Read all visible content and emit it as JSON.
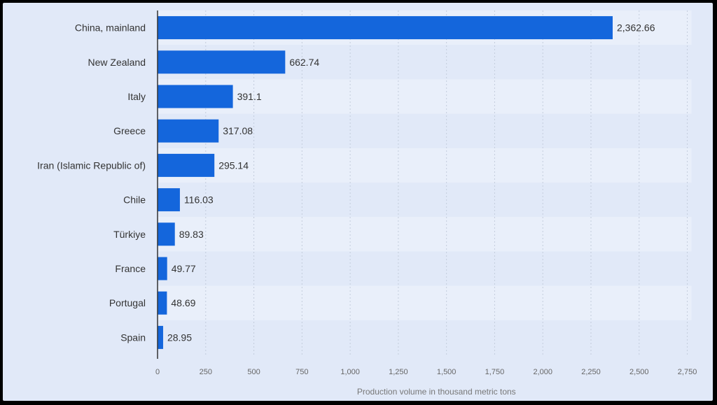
{
  "chart_data": {
    "type": "bar",
    "orientation": "horizontal",
    "categories": [
      "China, mainland",
      "New Zealand",
      "Italy",
      "Greece",
      "Iran (Islamic Republic of)",
      "Chile",
      "Türkiye",
      "France",
      "Portugal",
      "Spain"
    ],
    "values": [
      2362.66,
      662.74,
      391.1,
      317.08,
      295.14,
      116.03,
      89.83,
      49.77,
      48.69,
      28.95
    ],
    "value_labels": [
      "2,362.66",
      "662.74",
      "391.1",
      "317.08",
      "295.14",
      "116.03",
      "89.83",
      "49.77",
      "48.69",
      "28.95"
    ],
    "xlabel": "Production volume in thousand metric tons",
    "ylabel": "",
    "xlim": [
      0,
      2750
    ],
    "x_ticks": [
      0,
      250,
      500,
      750,
      1000,
      1250,
      1500,
      1750,
      2000,
      2250,
      2500,
      2750
    ],
    "x_tick_labels": [
      "0",
      "250",
      "500",
      "750",
      "1,000",
      "1,250",
      "1,500",
      "1,750",
      "2,000",
      "2,250",
      "2,500",
      "2,750"
    ],
    "grid": "vertical-dashed",
    "legend": "none",
    "bar_color": "#1466dc"
  }
}
